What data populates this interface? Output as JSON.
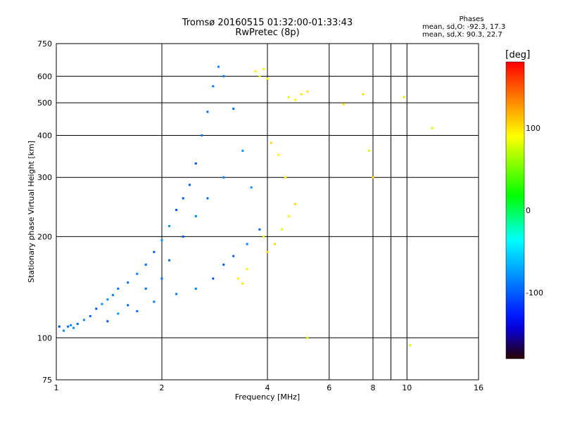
{
  "title": "Tromsø 20160515 01:32:00-01:33:43",
  "subtitle": "RwPretec (8p)",
  "phase_box": {
    "title": "Phases",
    "line_o": "mean, sd,O:  -92.3, 17.3",
    "line_x": "mean, sd,X:  90.3, 22.7"
  },
  "colorbar": {
    "unit": "deg",
    "ticks": [
      100,
      0,
      -100
    ],
    "range": [
      -180,
      180
    ]
  },
  "chart_data": {
    "type": "scatter",
    "title": "Tromsø 20160515 01:32:00-01:33:43",
    "subtitle": "RwPretec (8p)",
    "xlabel": "Frequency [MHz]",
    "ylabel": "Stationary phase Virtual Height [km]",
    "x_scale": "log",
    "y_scale": "log",
    "xlim": [
      1,
      16
    ],
    "ylim": [
      75,
      750
    ],
    "x_ticks": [
      1,
      2,
      4,
      6,
      8,
      10,
      16
    ],
    "x_minor_gridlines": [
      9
    ],
    "y_ticks": [
      75,
      100,
      200,
      300,
      400,
      500,
      600,
      750
    ],
    "grid": true,
    "series": [
      {
        "mode": "O",
        "phase_mean_deg": -92.3,
        "phase_sd_deg": 17.3,
        "color": "#1a2cff",
        "points_summary": "dense echo cloud from ~1 MHz at 100 km rising to ~2.9 MHz at 650 km, band edge near 3.8 MHz around 200 km",
        "points": [
          [
            1.02,
            108
          ],
          [
            1.05,
            105
          ],
          [
            1.08,
            108
          ],
          [
            1.1,
            109
          ],
          [
            1.12,
            107
          ],
          [
            1.15,
            110
          ],
          [
            1.2,
            113
          ],
          [
            1.25,
            116
          ],
          [
            1.3,
            122
          ],
          [
            1.35,
            126
          ],
          [
            1.4,
            130
          ],
          [
            1.45,
            134
          ],
          [
            1.5,
            140
          ],
          [
            1.6,
            146
          ],
          [
            1.7,
            155
          ],
          [
            1.8,
            165
          ],
          [
            1.9,
            180
          ],
          [
            2.0,
            195
          ],
          [
            2.1,
            215
          ],
          [
            2.2,
            240
          ],
          [
            2.3,
            260
          ],
          [
            2.4,
            285
          ],
          [
            2.5,
            330
          ],
          [
            2.6,
            400
          ],
          [
            2.7,
            470
          ],
          [
            2.8,
            560
          ],
          [
            2.9,
            640
          ],
          [
            3.0,
            600
          ],
          [
            3.2,
            480
          ],
          [
            3.4,
            360
          ],
          [
            3.6,
            280
          ],
          [
            3.8,
            210
          ],
          [
            3.5,
            190
          ],
          [
            3.2,
            175
          ],
          [
            3.0,
            165
          ],
          [
            2.8,
            150
          ],
          [
            2.5,
            140
          ],
          [
            2.2,
            135
          ],
          [
            2.0,
            150
          ],
          [
            1.8,
            140
          ],
          [
            1.6,
            125
          ],
          [
            1.5,
            118
          ],
          [
            1.4,
            112
          ],
          [
            1.7,
            120
          ],
          [
            1.9,
            128
          ],
          [
            2.1,
            170
          ],
          [
            2.3,
            200
          ],
          [
            2.5,
            230
          ],
          [
            2.7,
            260
          ],
          [
            3.0,
            300
          ]
        ]
      },
      {
        "mode": "X",
        "phase_mean_deg": 90.3,
        "phase_sd_deg": 22.7,
        "color": "#e8e800",
        "points_summary": "sparse yellow/orange echoes near 3.8-5.2 MHz (170-650 km) and scattered points up to ~12 MHz",
        "points": [
          [
            3.7,
            620
          ],
          [
            3.8,
            600
          ],
          [
            3.9,
            630
          ],
          [
            4.0,
            590
          ],
          [
            4.6,
            520
          ],
          [
            4.8,
            510
          ],
          [
            5.0,
            530
          ],
          [
            5.2,
            540
          ],
          [
            3.9,
            200
          ],
          [
            4.0,
            180
          ],
          [
            4.2,
            190
          ],
          [
            4.4,
            210
          ],
          [
            4.6,
            230
          ],
          [
            4.8,
            250
          ],
          [
            3.3,
            150
          ],
          [
            3.4,
            145
          ],
          [
            3.5,
            160
          ],
          [
            4.1,
            380
          ],
          [
            4.3,
            350
          ],
          [
            4.5,
            300
          ],
          [
            5.2,
            100
          ],
          [
            6.6,
            495
          ],
          [
            7.8,
            360
          ],
          [
            8.0,
            300
          ],
          [
            10.2,
            95
          ],
          [
            11.8,
            420
          ],
          [
            9.8,
            520
          ],
          [
            7.5,
            530
          ]
        ]
      }
    ]
  }
}
